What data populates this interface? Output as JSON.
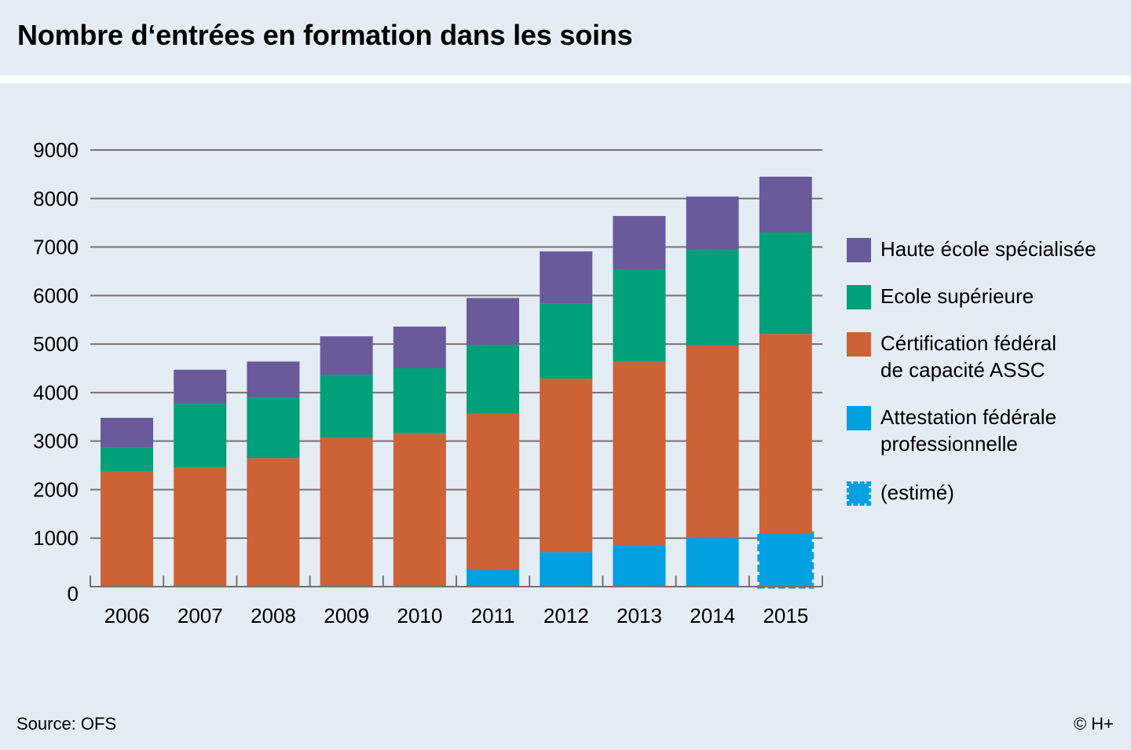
{
  "header": {
    "title": "Nombre d‘entrées en formation dans les soins"
  },
  "footer": {
    "source": "Source: OFS",
    "copyright": "© H+"
  },
  "colors": {
    "haute_ecole": "#6a5a9c",
    "ecole_superieure": "#00a078",
    "cfc": "#cc6236",
    "afp": "#00a0e1",
    "grid": "#7a7070",
    "background": "#e4ecf4"
  },
  "legend": [
    {
      "key": "haute_ecole",
      "label": "Haute école spécialisée",
      "style": "solid"
    },
    {
      "key": "ecole_superieure",
      "label": "Ecole supérieure",
      "style": "solid"
    },
    {
      "key": "cfc",
      "label": "Cértification fédéral\nde capacité ASSC",
      "style": "solid"
    },
    {
      "key": "afp",
      "label": "Attestation fédérale\nprofessionnelle",
      "style": "solid"
    },
    {
      "key": "afp",
      "label": "(estimé)",
      "style": "dashed"
    }
  ],
  "chart_data": {
    "type": "bar",
    "stacked": true,
    "title": "Nombre d‘entrées en formation dans les soins",
    "xlabel": "",
    "ylabel": "",
    "categories": [
      "2006",
      "2007",
      "2008",
      "2009",
      "2010",
      "2011",
      "2012",
      "2013",
      "2014",
      "2015"
    ],
    "ylim": [
      0,
      9000
    ],
    "yticks": [
      0,
      1000,
      2000,
      3000,
      4000,
      5000,
      6000,
      7000,
      8000,
      9000
    ],
    "grid": true,
    "legend_position": "right",
    "series": [
      {
        "key": "afp",
        "name": "Attestation fédérale professionnelle",
        "values": [
          0,
          0,
          0,
          0,
          0,
          340,
          710,
          840,
          1000,
          1100
        ],
        "estimated": [
          false,
          false,
          false,
          false,
          false,
          false,
          false,
          false,
          false,
          true
        ]
      },
      {
        "key": "cfc",
        "name": "Cértification fédéral de capacité ASSC",
        "values": [
          2380,
          2460,
          2650,
          3070,
          3160,
          3230,
          3580,
          3800,
          3970,
          4110
        ]
      },
      {
        "key": "ecole_superieure",
        "name": "Ecole supérieure",
        "values": [
          500,
          1310,
          1250,
          1300,
          1340,
          1410,
          1550,
          1900,
          1970,
          2090
        ]
      },
      {
        "key": "haute_ecole",
        "name": "Haute école spécialisée",
        "values": [
          600,
          700,
          740,
          790,
          860,
          970,
          1070,
          1100,
          1100,
          1150
        ]
      }
    ],
    "source": "Source: OFS"
  }
}
